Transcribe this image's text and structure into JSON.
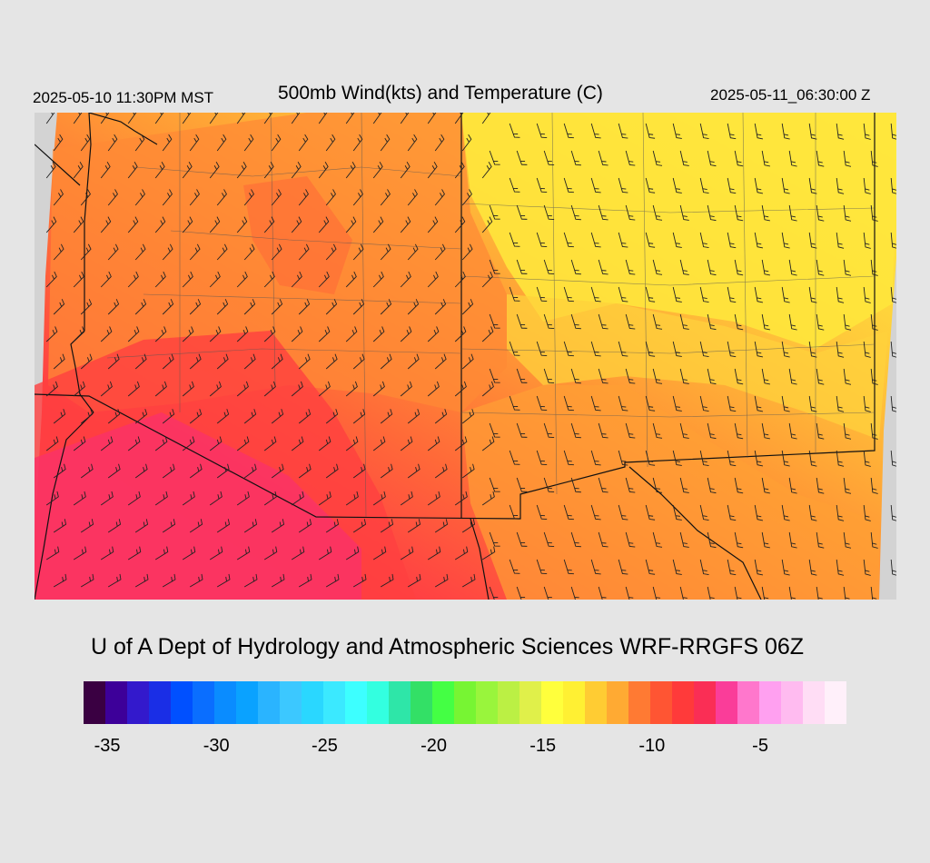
{
  "header": {
    "local_time": "2025-05-10 11:30PM MST",
    "title": "500mb Wind(kts) and Temperature (C)",
    "valid_time": "2025-05-11_06:30:00 Z"
  },
  "footer": {
    "credit": "U of A Dept of Hydrology and Atmospheric Sciences WRF-RRGFS 06Z"
  },
  "map": {
    "field": "500mb temperature (C) with wind barbs (kts)",
    "colors": {
      "background": "#e5e5e5",
      "nodata": "#d3d3d3",
      "coldest_region": "#fa3266",
      "mid_region": "#ff7a33",
      "warm_region": "#ffe53c"
    }
  },
  "legend": {
    "colors": [
      "#3a0042",
      "#3d0099",
      "#3319cc",
      "#1a2ee6",
      "#0050ff",
      "#0a6eff",
      "#0a8cff",
      "#0aa2ff",
      "#2ab4ff",
      "#3cc8ff",
      "#2ad7ff",
      "#3be9ff",
      "#3dffff",
      "#33ffe0",
      "#2ee6a8",
      "#33e066",
      "#44ff44",
      "#77f533",
      "#99f53c",
      "#bbf044",
      "#e0f04a",
      "#ffff3c",
      "#fff033",
      "#ffcc33",
      "#ffaa33",
      "#ff7a33",
      "#ff5533",
      "#ff3a3a",
      "#fa2e55",
      "#fa3d99",
      "#ff77cc",
      "#ffa0f0",
      "#ffbbf0",
      "#ffddf5",
      "#fff0fa"
    ],
    "ticks": [
      {
        "label": "-35",
        "pos": 0.031
      },
      {
        "label": "-30",
        "pos": 0.174
      },
      {
        "label": "-25",
        "pos": 0.316
      },
      {
        "label": "-20",
        "pos": 0.459
      },
      {
        "label": "-15",
        "pos": 0.602
      },
      {
        "label": "-10",
        "pos": 0.745
      },
      {
        "label": "-5",
        "pos": 0.887
      }
    ]
  }
}
